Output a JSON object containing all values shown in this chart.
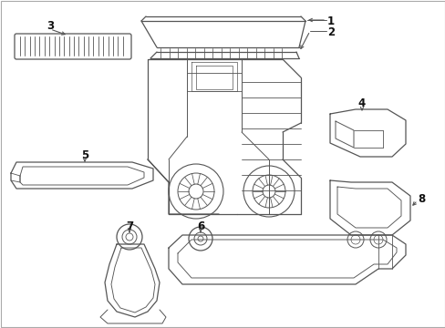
{
  "bg_color": "#ffffff",
  "line_color": "#555555",
  "line_width": 0.9,
  "label_color": "#111111",
  "label_fontsize": 8.5,
  "figsize": [
    4.89,
    3.6
  ],
  "dpi": 100,
  "border_color": "#aaaaaa",
  "border_lw": 0.8
}
